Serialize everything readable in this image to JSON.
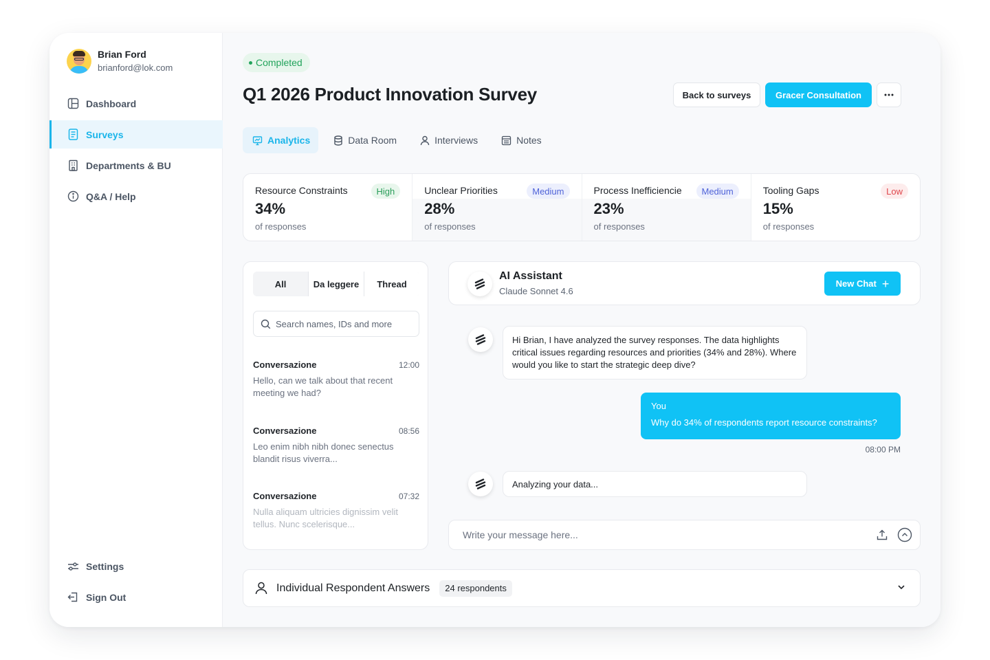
{
  "user": {
    "name": "Brian Ford",
    "email": "brianford@lok.com"
  },
  "sidebar": {
    "items": [
      {
        "label": "Dashboard",
        "icon": "layout-icon"
      },
      {
        "label": "Surveys",
        "icon": "document-icon",
        "active": true
      },
      {
        "label": "Departments & BU",
        "icon": "building-icon"
      },
      {
        "label": "Q&A / Help",
        "icon": "info-icon"
      }
    ],
    "bottom": [
      {
        "label": "Settings",
        "icon": "sliders-icon"
      },
      {
        "label": "Sign Out",
        "icon": "sign-out-icon"
      }
    ]
  },
  "survey": {
    "status": "Completed",
    "title": "Q1 2026 Product Innovation Survey",
    "back_label": "Back to surveys",
    "primary_label": "Gracer Consultation"
  },
  "tabs": [
    {
      "label": "Analytics",
      "icon": "presentation-icon",
      "active": true
    },
    {
      "label": "Data Room",
      "icon": "database-icon"
    },
    {
      "label": "Interviews",
      "icon": "user-icon"
    },
    {
      "label": "Notes",
      "icon": "notes-icon"
    }
  ],
  "metrics": [
    {
      "label": "Resource Constraints",
      "tag": "High",
      "value": "34%",
      "sub": "of responses"
    },
    {
      "label": "Unclear Priorities",
      "tag": "Medium",
      "value": "28%",
      "sub": "of responses"
    },
    {
      "label": "Process Inefficiencie",
      "tag": "Medium",
      "value": "23%",
      "sub": "of responses"
    },
    {
      "label": "Tooling Gaps",
      "tag": "Low",
      "value": "15%",
      "sub": "of responses"
    }
  ],
  "conversations": {
    "filters": [
      "All",
      "Da leggere",
      "Thread"
    ],
    "search_placeholder": "Search names, IDs and more",
    "items": [
      {
        "title": "Conversazione",
        "time": "12:00",
        "preview": "Hello, can we talk about that recent meeting we had?"
      },
      {
        "title": "Conversazione",
        "time": "08:56",
        "preview": "Leo enim nibh nibh donec senectus blandit risus viverra..."
      },
      {
        "title": "Conversazione",
        "time": "07:32",
        "preview": "Nulla aliquam ultricies dignissim velit tellus. Nunc scelerisque..."
      }
    ]
  },
  "chat": {
    "title": "AI Assistant",
    "model": "Claude Sonnet 4.6",
    "new_chat_label": "New Chat",
    "messages": [
      {
        "from": "assistant",
        "text": "Hi Brian, I have analyzed the survey responses. The data highlights critical issues regarding resources and priorities (34% and 28%). Where would you like to start the strategic deep dive?"
      },
      {
        "from": "You",
        "text": "Why do 34% of respondents report resource constraints?",
        "time": "08:00 PM"
      },
      {
        "from": "assistant",
        "text": "Analyzing your data..."
      }
    ],
    "input_placeholder": "Write your message here..."
  },
  "respondents": {
    "title": "Individual Respondent Answers",
    "count": "24 respondents"
  },
  "colors": {
    "accent": "#10c2f5",
    "success": "#22a35b",
    "medium": "#4f63d8",
    "danger": "#e0474c"
  }
}
